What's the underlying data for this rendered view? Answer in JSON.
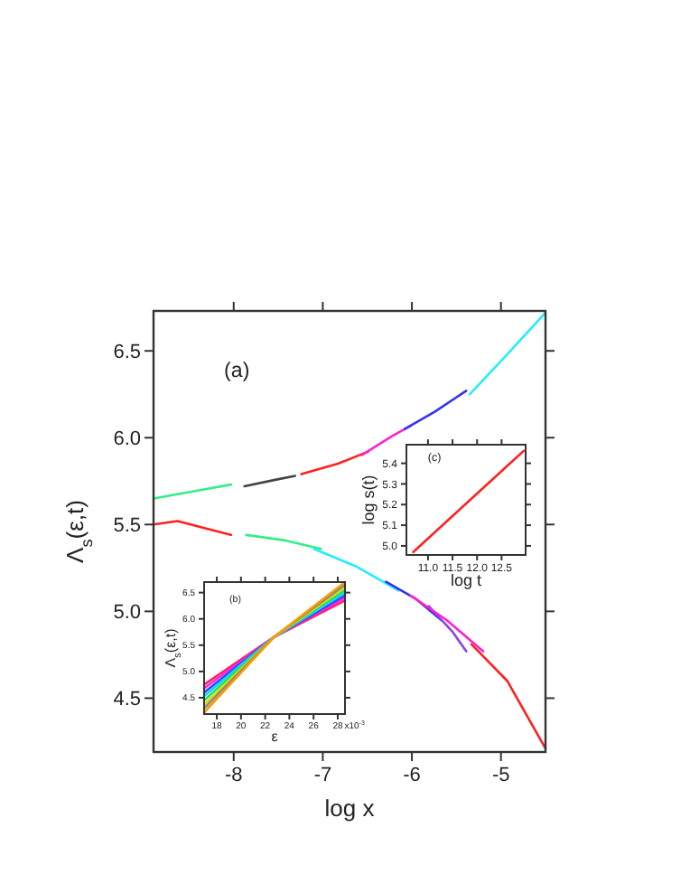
{
  "chart_data": [
    {
      "type": "line",
      "xlabel": "log x",
      "ylabel": "Λ$_{s}$(ε,t)",
      "annotations": [
        "(a)"
      ],
      "xlim": [
        -8.9,
        -4.5
      ],
      "ylim": [
        4.19,
        6.73
      ],
      "xticks": [
        -8,
        -7,
        -6,
        -5
      ],
      "yticks": [
        {
          "value": 4.5,
          "label": "4.5"
        },
        {
          "value": 5,
          "label": "5.0"
        },
        {
          "value": 5.5,
          "label": "5.5"
        },
        {
          "value": 6,
          "label": "6.0"
        },
        {
          "value": 6.5,
          "label": "6.5"
        }
      ],
      "grid": false,
      "marker": "none",
      "line_style": "solid",
      "series": [
        {
          "color": "#33ee88",
          "x": [
            -8.9,
            -8.46,
            -8.03
          ],
          "values": [
            5.65,
            5.69,
            5.73
          ]
        },
        {
          "color": "#444444",
          "x": [
            -7.88,
            -7.51,
            -7.31
          ],
          "values": [
            5.72,
            5.76,
            5.78
          ]
        },
        {
          "color": "#ff2020",
          "x": [
            -7.24,
            -6.83,
            -6.49
          ],
          "values": [
            5.79,
            5.85,
            5.92
          ]
        },
        {
          "color": "#ff22cc",
          "x": [
            -6.56,
            -6.22,
            -6.01
          ],
          "values": [
            5.9,
            6.01,
            6.07
          ]
        },
        {
          "color": "#3333ee",
          "x": [
            -6.08,
            -5.74,
            -5.39
          ],
          "values": [
            6.05,
            6.15,
            6.27
          ]
        },
        {
          "color": "#22eeff",
          "x": [
            -5.35,
            -4.93,
            -4.5
          ],
          "values": [
            6.25,
            6.48,
            6.72
          ]
        },
        {
          "color": "#ff2020",
          "x": [
            -8.9,
            -8.63,
            -8.26,
            -8.03
          ],
          "values": [
            5.5,
            5.52,
            5.47,
            5.44
          ]
        },
        {
          "color": "#33ee88",
          "x": [
            -7.86,
            -7.44,
            -7.02
          ],
          "values": [
            5.44,
            5.41,
            5.36
          ]
        },
        {
          "color": "#22eeff",
          "x": [
            -7.1,
            -6.63,
            -6.15
          ],
          "values": [
            5.36,
            5.26,
            5.12
          ]
        },
        {
          "color": "#3333ee",
          "x": [
            -6.29,
            -5.95,
            -5.67
          ],
          "values": [
            5.17,
            5.07,
            4.95
          ]
        },
        {
          "color": "#8844ee",
          "x": [
            -5.81,
            -5.54,
            -5.39
          ],
          "values": [
            5.03,
            4.88,
            4.77
          ]
        },
        {
          "color": "#ff22cc",
          "x": [
            -6.01,
            -5.61,
            -5.2
          ],
          "values": [
            5.09,
            4.95,
            4.77
          ]
        },
        {
          "color": "#ff2020",
          "x": [
            -5.33,
            -4.93,
            -4.5
          ],
          "values": [
            4.81,
            4.6,
            4.21
          ]
        }
      ]
    },
    {
      "type": "line",
      "xlabel": "ε",
      "ylabel": "Λ$_{s}$(ε,t)",
      "annotations": [
        "(b)",
        "x10$^{-3}$"
      ],
      "xlim": [
        16.95,
        28.6
      ],
      "ylim": [
        4.19,
        6.7
      ],
      "xticks": [
        18,
        20,
        22,
        24,
        26,
        28
      ],
      "yticks": [
        {
          "value": 4.5,
          "label": "4.5"
        },
        {
          "value": 5,
          "label": "5.0"
        },
        {
          "value": 5.5,
          "label": "5.5"
        },
        {
          "value": 6,
          "label": "6.0"
        },
        {
          "value": 6.5,
          "label": "6.5"
        }
      ],
      "grid": false,
      "marker": "none",
      "line_style": "solid",
      "series": [
        {
          "color": "#ff2060",
          "x": [
            16.95,
            22.7,
            28.6
          ],
          "values": [
            4.75,
            5.65,
            6.35
          ]
        },
        {
          "color": "#ff22dd",
          "x": [
            16.95,
            22.7,
            28.6
          ],
          "values": [
            4.68,
            5.65,
            6.4
          ]
        },
        {
          "color": "#3344ff",
          "x": [
            16.95,
            22.7,
            28.6
          ],
          "values": [
            4.6,
            5.65,
            6.45
          ]
        },
        {
          "color": "#00ddff",
          "x": [
            16.95,
            22.7,
            28.6
          ],
          "values": [
            4.53,
            5.65,
            6.5
          ]
        },
        {
          "color": "#22dd66",
          "x": [
            16.95,
            22.7,
            28.6
          ],
          "values": [
            4.45,
            5.65,
            6.55
          ]
        },
        {
          "color": "#dddd00",
          "x": [
            16.95,
            22.7,
            28.6
          ],
          "values": [
            4.37,
            5.65,
            6.6
          ]
        },
        {
          "color": "#888888",
          "x": [
            16.95,
            22.7,
            28.6
          ],
          "values": [
            4.3,
            5.65,
            6.65
          ]
        },
        {
          "color": "#ff9900",
          "x": [
            16.95,
            22.7,
            28.6
          ],
          "values": [
            4.22,
            5.65,
            6.7
          ]
        }
      ]
    },
    {
      "type": "line",
      "xlabel": "log t",
      "ylabel": "log s(t)",
      "annotations": [
        "(c)"
      ],
      "xlim": [
        10.56,
        12.99
      ],
      "ylim": [
        4.956,
        5.49
      ],
      "xticks": [
        {
          "value": 11,
          "label": "11.0"
        },
        {
          "value": 11.5,
          "label": "11.5"
        },
        {
          "value": 12,
          "label": "12.0"
        },
        {
          "value": 12.5,
          "label": "12.5"
        }
      ],
      "yticks": [
        {
          "value": 5,
          "label": "5.0"
        },
        {
          "value": 5.1,
          "label": "5.1"
        },
        {
          "value": 5.2,
          "label": "5.2"
        },
        {
          "value": 5.3,
          "label": "5.3"
        },
        {
          "value": 5.4,
          "label": "5.4"
        }
      ],
      "grid": false,
      "marker": "none",
      "line_style": "solid",
      "series": [
        {
          "color": "#ff2020",
          "x": [
            10.7,
            11.8,
            12.95
          ],
          "values": [
            4.97,
            5.21,
            5.46
          ]
        }
      ]
    }
  ]
}
